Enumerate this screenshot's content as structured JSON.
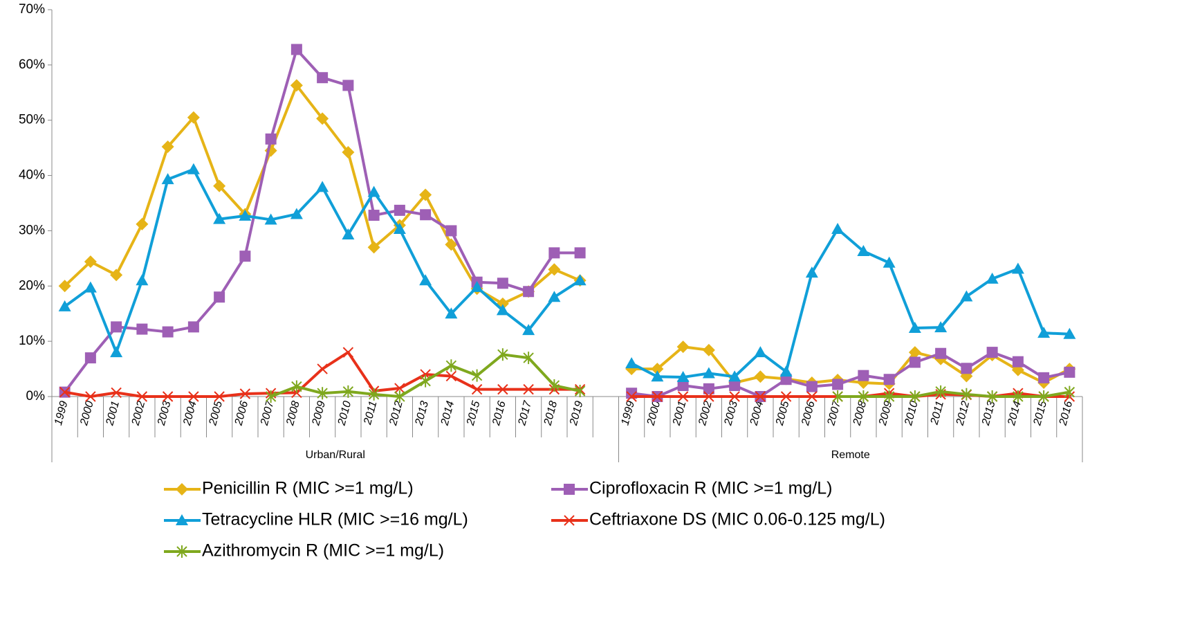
{
  "chart_data": {
    "type": "line",
    "groups": [
      {
        "name": "Urban/Rural",
        "categories": [
          "1999",
          "2000",
          "2001",
          "2002",
          "2003",
          "2004",
          "2005",
          "2006",
          "2007",
          "2008",
          "2009",
          "2010",
          "2011",
          "2012",
          "2013",
          "2014",
          "2015",
          "2016",
          "2017",
          "2018",
          "2019",
          null
        ]
      },
      {
        "name": "Remote",
        "categories": [
          "1999",
          "2000",
          "2001",
          "2002",
          "2003",
          "2004",
          "2005",
          "2006",
          "2007",
          "2008",
          "2009",
          "2010",
          "2011",
          "2012",
          "2013",
          "2014",
          "2015",
          "2016"
        ]
      }
    ],
    "ylim": [
      0,
      70
    ],
    "yticks": [
      {
        "value": 0,
        "label": "0%"
      },
      {
        "value": 10,
        "label": "10%"
      },
      {
        "value": 20,
        "label": "20%"
      },
      {
        "value": 30,
        "label": "30%"
      },
      {
        "value": 40,
        "label": "40%"
      },
      {
        "value": 50,
        "label": "50%"
      },
      {
        "value": 60,
        "label": "60%"
      },
      {
        "value": 70,
        "label": "70%"
      }
    ],
    "series": [
      {
        "name": "Penicillin R (MIC >=1 mg/L)",
        "color": "#e6b417",
        "marker": "diamond",
        "values": [
          20,
          24.4,
          22,
          31.2,
          45.2,
          50.5,
          38.1,
          33,
          44.5,
          56.3,
          50.3,
          44.2,
          27,
          31,
          36.5,
          27.5,
          19.5,
          16.8,
          19,
          23,
          21,
          null,
          5,
          5,
          9,
          8.4,
          2.5,
          3.6,
          3.2,
          2.5,
          3,
          2.5,
          2.3,
          8,
          6.8,
          3.7,
          7.5,
          4.8,
          2.5,
          5
        ]
      },
      {
        "name": "Ciprofloxacin R (MIC >=1 mg/L)",
        "color": "#9e5fb5",
        "marker": "square",
        "values": [
          0.8,
          7,
          12.6,
          12.2,
          11.7,
          12.6,
          18,
          25.4,
          46.6,
          62.8,
          57.7,
          56.3,
          32.8,
          33.7,
          32.9,
          30,
          20.7,
          20.5,
          19,
          26,
          26,
          null,
          0.6,
          0,
          2,
          1.4,
          2,
          0,
          3.1,
          1.8,
          2.2,
          3.8,
          3.1,
          6.2,
          7.8,
          5.1,
          8,
          6.3,
          3.4,
          4.4
        ]
      },
      {
        "name": "Tetracycline HLR (MIC >=16 mg/L)",
        "color": "#109fd8",
        "marker": "triangle",
        "values": [
          16.3,
          19.7,
          8,
          21,
          39.3,
          41.1,
          32.1,
          32.7,
          32,
          33,
          37.9,
          29.3,
          37,
          30.3,
          21,
          15,
          19.8,
          15.6,
          12,
          18,
          21,
          null,
          6,
          3.6,
          3.5,
          4.2,
          3.6,
          8,
          4.5,
          22.4,
          30.3,
          26.3,
          24.2,
          12.4,
          12.5,
          18.1,
          21.3,
          23.1,
          11.5,
          11.3
        ]
      },
      {
        "name": "Ceftriaxone DS (MIC 0.06-0.125 mg/L)",
        "color": "#e8311a",
        "marker": "x",
        "values": [
          0.8,
          0,
          0.7,
          0,
          0,
          0,
          0,
          0.5,
          0.6,
          0.7,
          5,
          8,
          1,
          1.5,
          4,
          3.7,
          1.3,
          1.3,
          1.3,
          1.3,
          1.3,
          null,
          0,
          0,
          0,
          0,
          0,
          0,
          0,
          0,
          0,
          0,
          0.6,
          0,
          0.4,
          0.3,
          0,
          0.6,
          0,
          0
        ]
      },
      {
        "name": "Azithromycin R (MIC >=1 mg/L)",
        "color": "#7fa81e",
        "marker": "star",
        "values": [
          null,
          null,
          null,
          null,
          null,
          null,
          null,
          null,
          0,
          1.8,
          0.6,
          0.9,
          0.4,
          0,
          2.8,
          5.6,
          3.8,
          7.6,
          7,
          2,
          1,
          null,
          null,
          null,
          null,
          null,
          null,
          null,
          null,
          null,
          0,
          0,
          0,
          0,
          0.9,
          0.4,
          0,
          0,
          0,
          0.8
        ]
      }
    ],
    "grid": false
  }
}
